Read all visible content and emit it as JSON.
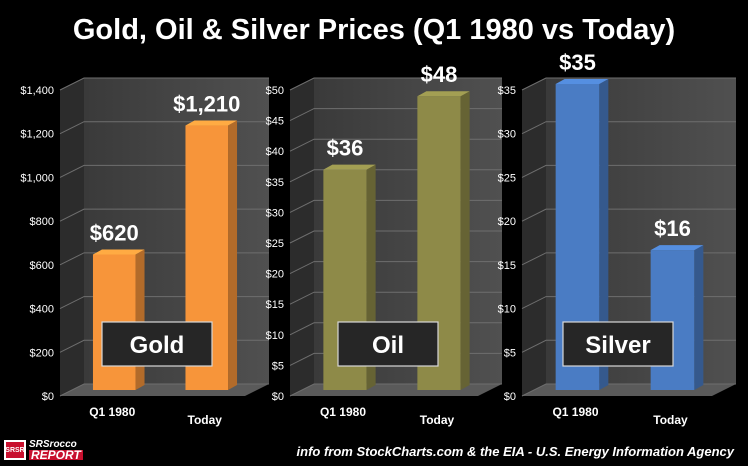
{
  "title": "Gold, Oil & Silver Prices (Q1 1980 vs Today)",
  "chart_data": [
    {
      "type": "bar",
      "panel_label": "Gold",
      "categories": [
        "Q1 1980",
        "Today"
      ],
      "values": [
        620,
        1210
      ],
      "value_labels": [
        "$620",
        "$1,210"
      ],
      "ylim": [
        0,
        1400
      ],
      "yticks": [
        0,
        200,
        400,
        600,
        800,
        1000,
        1200,
        1400
      ],
      "ytick_labels": [
        "$0",
        "$200",
        "$400",
        "$600",
        "$800",
        "$1,000",
        "$1,200",
        "$1,400"
      ],
      "color": "#f7953a",
      "grid": true
    },
    {
      "type": "bar",
      "panel_label": "Oil",
      "categories": [
        "Q1 1980",
        "Today"
      ],
      "values": [
        36,
        48
      ],
      "value_labels": [
        "$36",
        "$48"
      ],
      "ylim": [
        0,
        50
      ],
      "yticks": [
        0,
        5,
        10,
        15,
        20,
        25,
        30,
        35,
        40,
        45,
        50
      ],
      "ytick_labels": [
        "$0",
        "$5",
        "$10",
        "$15",
        "$20",
        "$25",
        "$30",
        "$35",
        "$40",
        "$45",
        "$50"
      ],
      "color": "#8e8a48",
      "grid": true
    },
    {
      "type": "bar",
      "panel_label": "Silver",
      "categories": [
        "Q1 1980",
        "Today"
      ],
      "values": [
        35,
        16
      ],
      "value_labels": [
        "$35",
        "$16"
      ],
      "ylim": [
        0,
        35
      ],
      "yticks": [
        0,
        5,
        10,
        15,
        20,
        25,
        30,
        35
      ],
      "ytick_labels": [
        "$0",
        "$5",
        "$10",
        "$15",
        "$20",
        "$25",
        "$30",
        "$35"
      ],
      "color": "#4a7cc4",
      "grid": true
    }
  ],
  "footer": {
    "logo_badge": "SRSR",
    "logo_line1": "SRSrocco",
    "logo_line2": "REPORT",
    "source": "info from StockCharts.com & the EIA - U.S. Energy Information Agency"
  }
}
